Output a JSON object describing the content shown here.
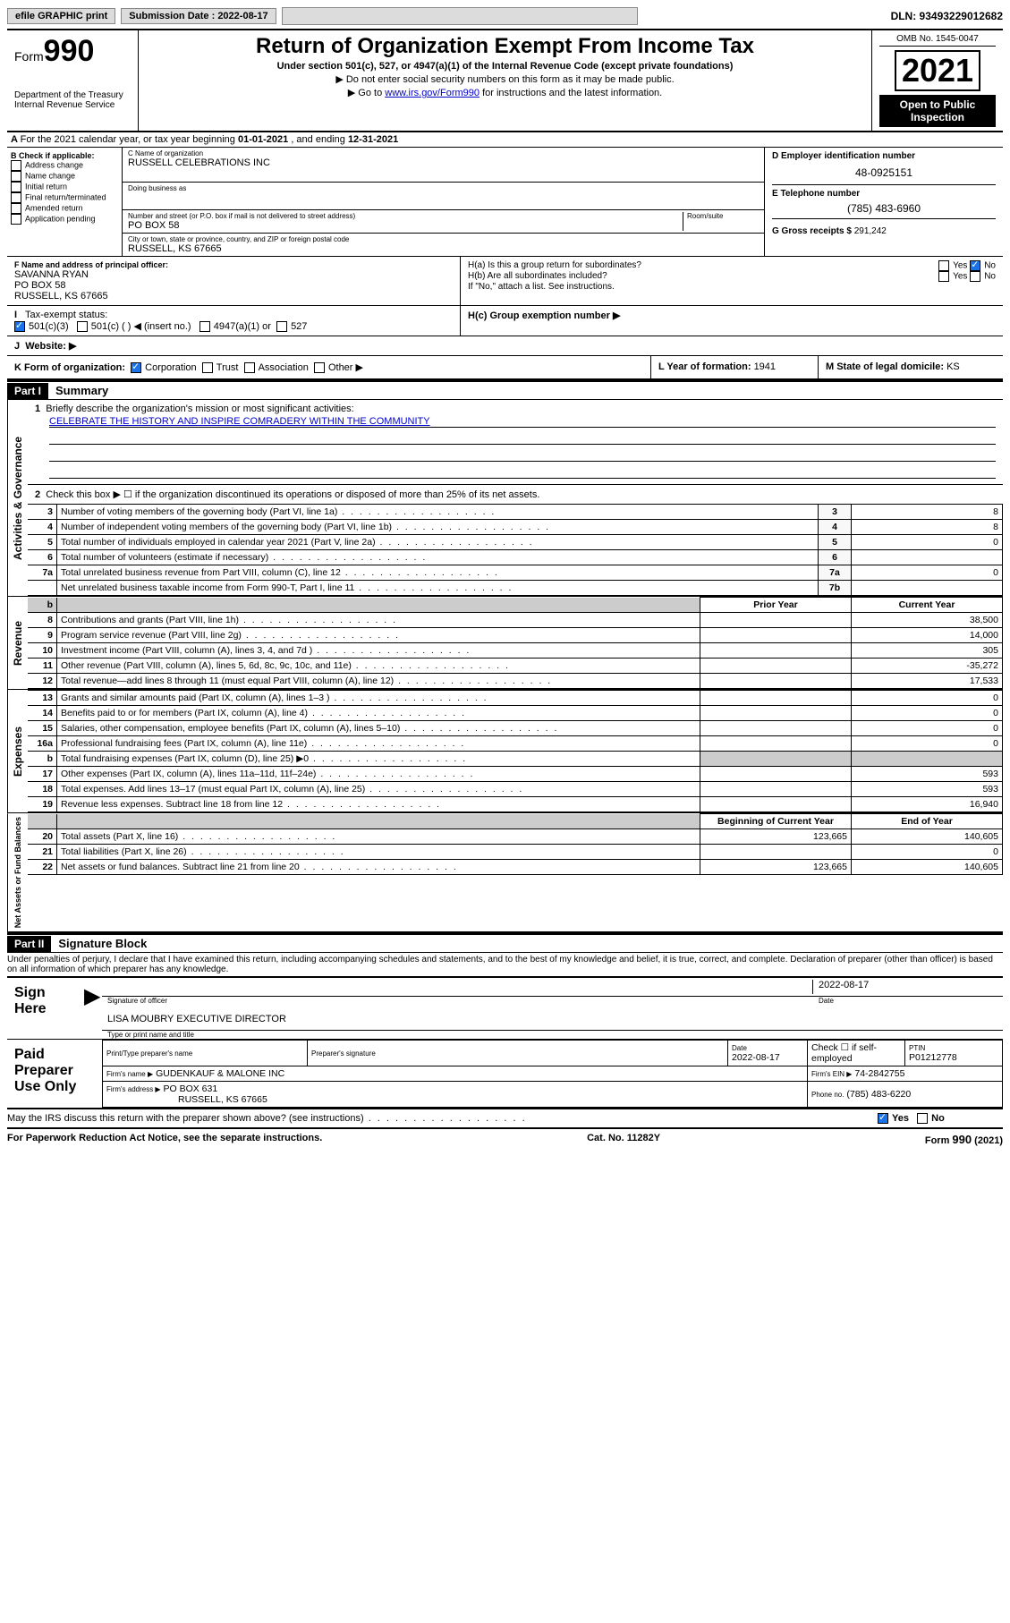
{
  "topbar": {
    "efile": "efile GRAPHIC print",
    "submission_label": "Submission Date : 2022-08-17",
    "dln": "DLN: 93493229012682"
  },
  "header": {
    "form_label": "Form",
    "form_no": "990",
    "dept": "Department of the Treasury",
    "irs": "Internal Revenue Service",
    "title": "Return of Organization Exempt From Income Tax",
    "sub1": "Under section 501(c), 527, or 4947(a)(1) of the Internal Revenue Code (except private foundations)",
    "sub2": "▶ Do not enter social security numbers on this form as it may be made public.",
    "sub3_pre": "▶ Go to ",
    "sub3_link": "www.irs.gov/Form990",
    "sub3_post": " for instructions and the latest information.",
    "omb": "OMB No. 1545-0047",
    "year": "2021",
    "open": "Open to Public Inspection"
  },
  "secA": {
    "text_pre": "For the 2021 calendar year, or tax year beginning ",
    "begin": "01-01-2021",
    "mid": " , and ending ",
    "end": "12-31-2021"
  },
  "B": {
    "title": "B Check if applicable:",
    "opts": [
      "Address change",
      "Name change",
      "Initial return",
      "Final return/terminated",
      "Amended return",
      "Application pending"
    ]
  },
  "C": {
    "name_lbl": "C Name of organization",
    "name": "RUSSELL CELEBRATIONS INC",
    "dba_lbl": "Doing business as",
    "addr_lbl": "Number and street (or P.O. box if mail is not delivered to street address)",
    "room_lbl": "Room/suite",
    "addr": "PO BOX 58",
    "city_lbl": "City or town, state or province, country, and ZIP or foreign postal code",
    "city": "RUSSELL, KS  67665"
  },
  "D": {
    "lbl": "D Employer identification number",
    "val": "48-0925151"
  },
  "E": {
    "lbl": "E Telephone number",
    "val": "(785) 483-6960"
  },
  "G": {
    "lbl": "G Gross receipts $",
    "val": "291,242"
  },
  "F": {
    "lbl": "F Name and address of principal officer:",
    "name": "SAVANNA RYAN",
    "addr1": "PO BOX 58",
    "addr2": "RUSSELL, KS  67665"
  },
  "H": {
    "a": "H(a)  Is this a group return for subordinates?",
    "b": "H(b)  Are all subordinates included?",
    "b_note": "If \"No,\" attach a list. See instructions.",
    "c_lbl": "H(c)  Group exemption number ▶",
    "yes": "Yes",
    "no": "No"
  },
  "I": {
    "lbl": "Tax-exempt status:",
    "o1": "501(c)(3)",
    "o2": "501(c) (   ) ◀ (insert no.)",
    "o3": "4947(a)(1) or",
    "o4": "527"
  },
  "J": {
    "lbl": "Website: ▶"
  },
  "K": {
    "lbl": "K Form of organization:",
    "o1": "Corporation",
    "o2": "Trust",
    "o3": "Association",
    "o4": "Other ▶"
  },
  "L": {
    "lbl": "L Year of formation: ",
    "val": "1941"
  },
  "M": {
    "lbl": "M State of legal domicile: ",
    "val": "KS"
  },
  "part1": {
    "hdr": "Part I",
    "title": "Summary",
    "l1": "Briefly describe the organization's mission or most significant activities:",
    "mission": "CELEBRATE THE HISTORY AND INSPIRE COMRADERY WITHIN THE COMMUNITY",
    "l2": "Check this box ▶ ☐  if the organization discontinued its operations or disposed of more than 25% of its net assets.",
    "vlab_ag": "Activities & Governance",
    "vlab_rev": "Revenue",
    "vlab_exp": "Expenses",
    "vlab_na": "Net Assets or Fund Balances",
    "col_prior": "Prior Year",
    "col_curr": "Current Year",
    "col_boy": "Beginning of Current Year",
    "col_eoy": "End of Year",
    "rows_ag": [
      {
        "n": "3",
        "d": "Number of voting members of the governing body (Part VI, line 1a)",
        "box": "3",
        "v": "8"
      },
      {
        "n": "4",
        "d": "Number of independent voting members of the governing body (Part VI, line 1b)",
        "box": "4",
        "v": "8"
      },
      {
        "n": "5",
        "d": "Total number of individuals employed in calendar year 2021 (Part V, line 2a)",
        "box": "5",
        "v": "0"
      },
      {
        "n": "6",
        "d": "Total number of volunteers (estimate if necessary)",
        "box": "6",
        "v": ""
      },
      {
        "n": "7a",
        "d": "Total unrelated business revenue from Part VIII, column (C), line 12",
        "box": "7a",
        "v": "0"
      },
      {
        "n": "",
        "d": "Net unrelated business taxable income from Form 990-T, Part I, line 11",
        "box": "7b",
        "v": ""
      }
    ],
    "rows_rev": [
      {
        "n": "8",
        "d": "Contributions and grants (Part VIII, line 1h)",
        "p": "",
        "c": "38,500"
      },
      {
        "n": "9",
        "d": "Program service revenue (Part VIII, line 2g)",
        "p": "",
        "c": "14,000"
      },
      {
        "n": "10",
        "d": "Investment income (Part VIII, column (A), lines 3, 4, and 7d )",
        "p": "",
        "c": "305"
      },
      {
        "n": "11",
        "d": "Other revenue (Part VIII, column (A), lines 5, 6d, 8c, 9c, 10c, and 11e)",
        "p": "",
        "c": "-35,272"
      },
      {
        "n": "12",
        "d": "Total revenue—add lines 8 through 11 (must equal Part VIII, column (A), line 12)",
        "p": "",
        "c": "17,533"
      }
    ],
    "rows_exp": [
      {
        "n": "13",
        "d": "Grants and similar amounts paid (Part IX, column (A), lines 1–3 )",
        "p": "",
        "c": "0"
      },
      {
        "n": "14",
        "d": "Benefits paid to or for members (Part IX, column (A), line 4)",
        "p": "",
        "c": "0"
      },
      {
        "n": "15",
        "d": "Salaries, other compensation, employee benefits (Part IX, column (A), lines 5–10)",
        "p": "",
        "c": "0"
      },
      {
        "n": "16a",
        "d": "Professional fundraising fees (Part IX, column (A), line 11e)",
        "p": "",
        "c": "0"
      },
      {
        "n": "b",
        "d": "Total fundraising expenses (Part IX, column (D), line 25) ▶0",
        "p": "shade",
        "c": "shade"
      },
      {
        "n": "17",
        "d": "Other expenses (Part IX, column (A), lines 11a–11d, 11f–24e)",
        "p": "",
        "c": "593"
      },
      {
        "n": "18",
        "d": "Total expenses. Add lines 13–17 (must equal Part IX, column (A), line 25)",
        "p": "",
        "c": "593"
      },
      {
        "n": "19",
        "d": "Revenue less expenses. Subtract line 18 from line 12",
        "p": "",
        "c": "16,940"
      }
    ],
    "rows_na": [
      {
        "n": "20",
        "d": "Total assets (Part X, line 16)",
        "p": "123,665",
        "c": "140,605"
      },
      {
        "n": "21",
        "d": "Total liabilities (Part X, line 26)",
        "p": "",
        "c": "0"
      },
      {
        "n": "22",
        "d": "Net assets or fund balances. Subtract line 21 from line 20",
        "p": "123,665",
        "c": "140,605"
      }
    ]
  },
  "part2": {
    "hdr": "Part II",
    "title": "Signature Block",
    "decl": "Under penalties of perjury, I declare that I have examined this return, including accompanying schedules and statements, and to the best of my knowledge and belief, it is true, correct, and complete. Declaration of preparer (other than officer) is based on all information of which preparer has any knowledge.",
    "sign_here": "Sign Here",
    "sig_officer": "Signature of officer",
    "sig_date": "Date",
    "sig_date_val": "2022-08-17",
    "name_title": "LISA MOUBRY  EXECUTIVE DIRECTOR",
    "name_lbl": "Type or print name and title",
    "paid": "Paid Preparer Use Only",
    "pp_name_lbl": "Print/Type preparer's name",
    "pp_sig_lbl": "Preparer's signature",
    "pp_date_lbl": "Date",
    "pp_date": "2022-08-17",
    "pp_check": "Check ☐ if self-employed",
    "ptin_lbl": "PTIN",
    "ptin": "P01212778",
    "firm_name_lbl": "Firm's name    ▶",
    "firm_name": "GUDENKAUF & MALONE INC",
    "firm_ein_lbl": "Firm's EIN ▶",
    "firm_ein": "74-2842755",
    "firm_addr_lbl": "Firm's address ▶",
    "firm_addr1": "PO BOX 631",
    "firm_addr2": "RUSSELL, KS  67665",
    "phone_lbl": "Phone no.",
    "phone": "(785) 483-6220",
    "may": "May the IRS discuss this return with the preparer shown above? (see instructions)"
  },
  "footer": {
    "l": "For Paperwork Reduction Act Notice, see the separate instructions.",
    "m": "Cat. No. 11282Y",
    "r": "Form 990 (2021)"
  }
}
